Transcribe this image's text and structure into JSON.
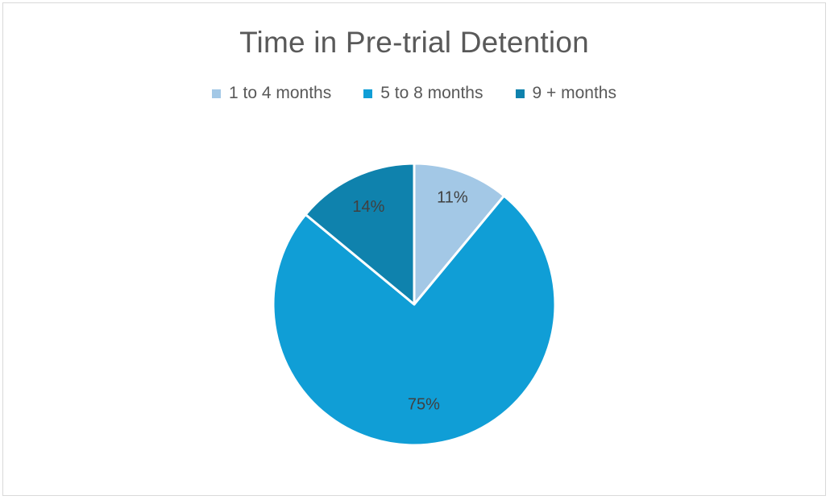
{
  "chart_data": {
    "type": "pie",
    "title": "Time in Pre-trial Detention",
    "categories": [
      "1 to 4 months",
      "5 to 8 months",
      "9 + months"
    ],
    "values": [
      11,
      75,
      14
    ],
    "labels": [
      "11%",
      "75%",
      "14%"
    ],
    "colors": [
      "#a3c8e6",
      "#109ed6",
      "#0f82ad"
    ],
    "legend_position": "top"
  }
}
